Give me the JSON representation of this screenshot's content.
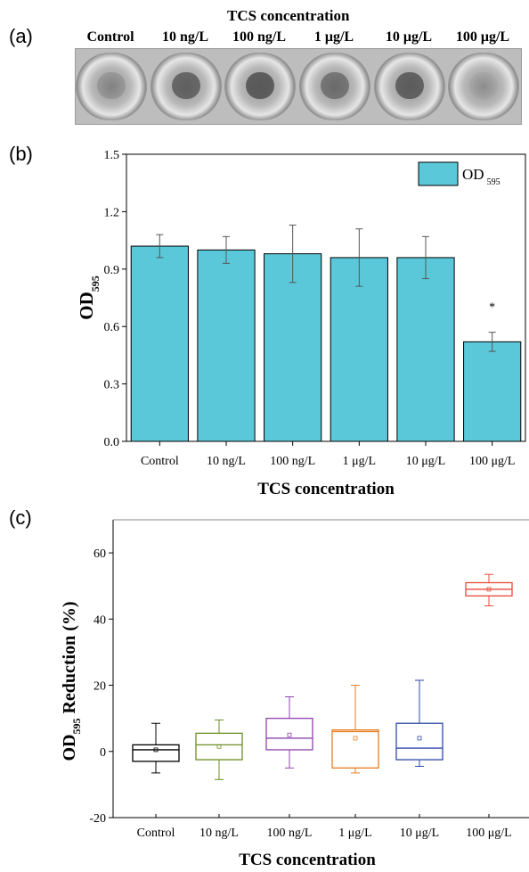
{
  "panel_labels": {
    "a": "(a)",
    "b": "(b)",
    "c": "(c)"
  },
  "photo": {
    "title": "TCS concentration",
    "wells": [
      "Control",
      "10 ng/L",
      "100 ng/L",
      "1 μg/L",
      "10 μg/L",
      "100 μg/L"
    ],
    "dark_blob_intensity": [
      0.2,
      0.7,
      0.8,
      0.55,
      0.75,
      0.05
    ]
  },
  "chart_data": [
    {
      "type": "bar",
      "panel": "b",
      "categories": [
        "Control",
        "10 ng/L",
        "100 ng/L",
        "1 μg/L",
        "10 μg/L",
        "100 μg/L"
      ],
      "values": [
        1.02,
        1.0,
        0.98,
        0.96,
        0.96,
        0.52
      ],
      "errors": [
        0.06,
        0.07,
        0.15,
        0.15,
        0.11,
        0.05
      ],
      "significance": [
        "",
        "",
        "",
        "",
        "",
        "*"
      ],
      "legend": "OD",
      "legend_sub": "595",
      "legend_position": "top-right",
      "xlabel": "TCS concentration",
      "ylabel": "OD",
      "ylabel_sub": "595",
      "ylim": [
        0.0,
        1.5
      ],
      "yticks": [
        "0.0",
        "0.3",
        "0.6",
        "0.9",
        "1.2",
        "1.5"
      ],
      "bar_color": "#5bc8d9"
    },
    {
      "type": "box",
      "panel": "c",
      "categories": [
        "Control",
        "10 ng/L",
        "100 ng/L",
        "1 μg/L",
        "10 μg/L",
        "100 μg/L"
      ],
      "boxes": [
        {
          "min": -6.5,
          "q1": -3,
          "median": 0.5,
          "q3": 2,
          "max": 8.5,
          "mean": 0.5,
          "color": "#000000"
        },
        {
          "min": -8.5,
          "q1": -2.5,
          "median": 2,
          "q3": 5.5,
          "max": 9.5,
          "mean": 1.5,
          "color": "#6b8e23"
        },
        {
          "min": -5,
          "q1": 0.5,
          "median": 4,
          "q3": 10,
          "max": 16.5,
          "mean": 5,
          "color": "#8e44ad"
        },
        {
          "min": -6.5,
          "q1": -5,
          "median": 6,
          "q3": 6.5,
          "max": 20,
          "mean": 4,
          "color": "#e67e22"
        },
        {
          "min": -4.5,
          "q1": -2.5,
          "median": 1,
          "q3": 8.5,
          "max": 21.5,
          "mean": 4,
          "color": "#2e4aa8"
        },
        {
          "min": 44,
          "q1": 47,
          "median": 49,
          "q3": 51,
          "max": 53.5,
          "mean": 49,
          "color": "#e74c3c"
        }
      ],
      "xlabel": "TCS concentration",
      "ylabel": "OD",
      "ylabel_sub": "595",
      "ylabel_rest": " Reduction (%)",
      "ylim": [
        -20,
        70
      ],
      "yticks": [
        "-20",
        "0",
        "20",
        "40",
        "60"
      ]
    }
  ]
}
